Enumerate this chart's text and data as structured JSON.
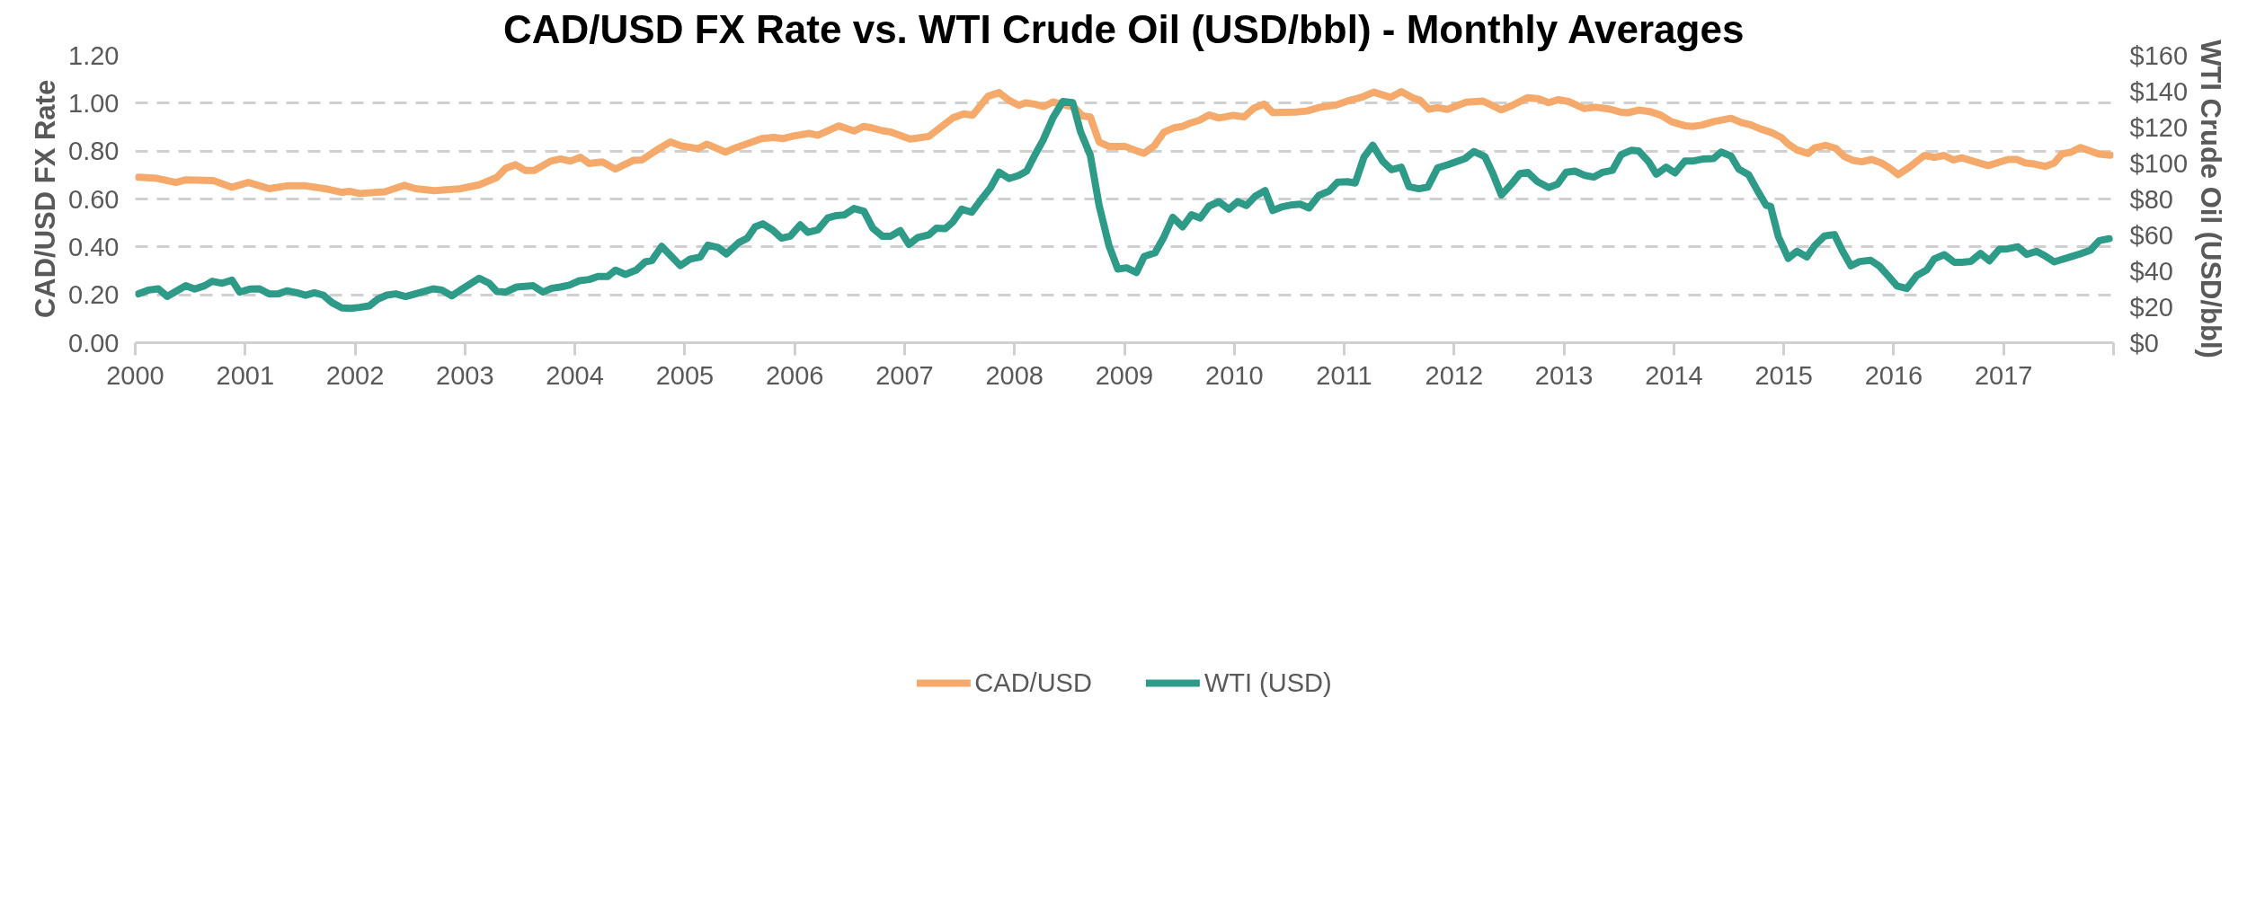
{
  "chart_data": {
    "type": "line",
    "title": "CAD/USD FX Rate vs. WTI Crude Oil (USD/bbl) - Monthly Averages",
    "ylabel": "CAD/USD FX Rate",
    "y2label": "WTI Crude Oil (USD/bbl)",
    "xlim": [
      2000,
      2018
    ],
    "xticks": [
      2000,
      2001,
      2002,
      2003,
      2004,
      2005,
      2006,
      2007,
      2008,
      2009,
      2010,
      2011,
      2012,
      2013,
      2014,
      2015,
      2016,
      2017,
      {
        "value": 2018,
        "label": null
      }
    ],
    "ylim": [
      0,
      1.2
    ],
    "yticks": [
      {
        "value": 0,
        "label": "0.00"
      },
      {
        "value": 0.2,
        "label": "0.20"
      },
      {
        "value": 0.4,
        "label": "0.40"
      },
      {
        "value": 0.6,
        "label": "0.60"
      },
      {
        "value": 0.8,
        "label": "0.80"
      },
      {
        "value": 1.0,
        "label": "1.00"
      },
      {
        "value": 1.2,
        "label": "1.20"
      }
    ],
    "y2lim": [
      0,
      160
    ],
    "y2ticks": [
      {
        "value": 0,
        "label": "$0"
      },
      {
        "value": 20,
        "label": "$20"
      },
      {
        "value": 40,
        "label": "$40"
      },
      {
        "value": 60,
        "label": "$60"
      },
      {
        "value": 80,
        "label": "$80"
      },
      {
        "value": 100,
        "label": "$100"
      },
      {
        "value": 120,
        "label": "$120"
      },
      {
        "value": 140,
        "label": "$140"
      },
      {
        "value": 160,
        "label": "$160"
      }
    ],
    "grid": "y",
    "legend": "bottom",
    "series": [
      {
        "name": "CAD/USD",
        "color": "#f5aa6c",
        "x": [
          2000.03,
          2000.2,
          2000.37,
          2000.46,
          2000.71,
          2000.88,
          2001.03,
          2001.22,
          2001.38,
          2001.55,
          2001.75,
          2001.88,
          2001.95,
          2002.04,
          2002.27,
          2002.45,
          2002.55,
          2002.72,
          2002.96,
          2003.13,
          2003.29,
          2003.37,
          2003.46,
          2003.55,
          2003.63,
          2003.78,
          2003.87,
          2003.96,
          2004.05,
          2004.13,
          2004.25,
          2004.37,
          2004.53,
          2004.61,
          2004.75,
          2004.87,
          2004.97,
          2005.12,
          2005.2,
          2005.37,
          2005.47,
          2005.7,
          2005.81,
          2005.89,
          2005.99,
          2006.13,
          2006.21,
          2006.4,
          2006.54,
          2006.63,
          2006.7,
          2006.8,
          2006.87,
          2007.05,
          2007.22,
          2007.44,
          2007.54,
          2007.62,
          2007.76,
          2007.86,
          2007.95,
          2008.04,
          2008.1,
          2008.18,
          2008.27,
          2008.35,
          2008.47,
          2008.54,
          2008.62,
          2008.69,
          2008.77,
          2008.86,
          2009.01,
          2009.11,
          2009.18,
          2009.27,
          2009.36,
          2009.45,
          2009.53,
          2009.6,
          2009.68,
          2009.77,
          2009.86,
          2009.99,
          2010.09,
          2010.18,
          2010.27,
          2010.35,
          2010.56,
          2010.66,
          2010.78,
          2010.93,
          2011.03,
          2011.15,
          2011.27,
          2011.42,
          2011.52,
          2011.62,
          2011.69,
          2011.77,
          2011.85,
          2011.94,
          2012.11,
          2012.26,
          2012.33,
          2012.43,
          2012.53,
          2012.67,
          2012.77,
          2012.86,
          2012.95,
          2013.04,
          2013.18,
          2013.29,
          2013.41,
          2013.51,
          2013.58,
          2013.68,
          2013.78,
          2013.88,
          2013.98,
          2014.1,
          2014.17,
          2014.25,
          2014.37,
          2014.52,
          2014.62,
          2014.69,
          2014.79,
          2014.89,
          2014.98,
          2015.04,
          2015.12,
          2015.22,
          2015.28,
          2015.38,
          2015.47,
          2015.55,
          2015.63,
          2015.71,
          2015.8,
          2015.89,
          2015.97,
          2016.04,
          2016.14,
          2016.28,
          2016.37,
          2016.46,
          2016.54,
          2016.62,
          2016.74,
          2016.86,
          2017.04,
          2017.12,
          2017.2,
          2017.28,
          2017.38,
          2017.46,
          2017.53,
          2017.61,
          2017.7,
          2017.81,
          2017.87,
          2017.97
        ],
        "values": [
          0.691,
          0.686,
          0.669,
          0.68,
          0.677,
          0.649,
          0.669,
          0.643,
          0.655,
          0.655,
          0.641,
          0.628,
          0.632,
          0.623,
          0.63,
          0.657,
          0.643,
          0.635,
          0.643,
          0.659,
          0.69,
          0.728,
          0.743,
          0.719,
          0.719,
          0.758,
          0.767,
          0.758,
          0.774,
          0.748,
          0.755,
          0.725,
          0.761,
          0.763,
          0.806,
          0.838,
          0.821,
          0.81,
          0.829,
          0.796,
          0.815,
          0.852,
          0.857,
          0.852,
          0.863,
          0.874,
          0.866,
          0.905,
          0.884,
          0.903,
          0.897,
          0.885,
          0.88,
          0.85,
          0.861,
          0.939,
          0.955,
          0.95,
          1.029,
          1.044,
          1.012,
          0.991,
          1.001,
          0.996,
          0.986,
          1.005,
          0.991,
          0.984,
          0.947,
          0.942,
          0.838,
          0.819,
          0.819,
          0.801,
          0.791,
          0.821,
          0.879,
          0.897,
          0.903,
          0.917,
          0.928,
          0.951,
          0.938,
          0.949,
          0.943,
          0.98,
          0.996,
          0.961,
          0.963,
          0.967,
          0.983,
          0.993,
          1.009,
          1.023,
          1.046,
          1.024,
          1.048,
          1.023,
          1.012,
          0.975,
          0.981,
          0.974,
          1.004,
          1.009,
          0.994,
          0.972,
          0.991,
          1.023,
          1.018,
          1.002,
          1.015,
          1.007,
          0.978,
          0.983,
          0.976,
          0.963,
          0.96,
          0.971,
          0.965,
          0.95,
          0.922,
          0.906,
          0.903,
          0.908,
          0.924,
          0.937,
          0.918,
          0.911,
          0.892,
          0.877,
          0.856,
          0.829,
          0.805,
          0.79,
          0.813,
          0.824,
          0.812,
          0.778,
          0.761,
          0.755,
          0.765,
          0.75,
          0.727,
          0.702,
          0.732,
          0.782,
          0.774,
          0.782,
          0.763,
          0.772,
          0.755,
          0.739,
          0.765,
          0.765,
          0.75,
          0.746,
          0.736,
          0.75,
          0.788,
          0.795,
          0.815,
          0.797,
          0.787,
          0.783
        ]
      },
      {
        "name": "WTI (USD)",
        "color": "#2e9a88",
        "axis": "y2",
        "x": [
          2000.03,
          2000.12,
          2000.21,
          2000.29,
          2000.46,
          2000.54,
          2000.63,
          2000.7,
          2000.79,
          2000.88,
          2000.95,
          2001.05,
          2001.13,
          2001.22,
          2001.3,
          2001.38,
          2001.47,
          2001.55,
          2001.63,
          2001.71,
          2001.79,
          2001.88,
          2001.96,
          2002.04,
          2002.13,
          2002.21,
          2002.29,
          2002.37,
          2002.46,
          2002.63,
          2002.71,
          2002.79,
          2002.88,
          2002.96,
          2003.13,
          2003.22,
          2003.29,
          2003.37,
          2003.47,
          2003.62,
          2003.71,
          2003.79,
          2003.87,
          2003.95,
          2004.04,
          2004.13,
          2004.21,
          2004.3,
          2004.37,
          2004.46,
          2004.56,
          2004.64,
          2004.7,
          2004.79,
          2004.96,
          2005.05,
          2005.14,
          2005.21,
          2005.3,
          2005.38,
          2005.49,
          2005.57,
          2005.64,
          2005.71,
          2005.8,
          2005.88,
          2005.96,
          2006.05,
          2006.12,
          2006.21,
          2006.3,
          2006.38,
          2006.45,
          2006.54,
          2006.63,
          2006.71,
          2006.8,
          2006.87,
          2006.96,
          2007.04,
          2007.12,
          2007.22,
          2007.29,
          2007.37,
          2007.44,
          2007.52,
          2007.61,
          2007.7,
          2007.78,
          2007.86,
          2007.95,
          2008.04,
          2008.11,
          2008.19,
          2008.26,
          2008.35,
          2008.44,
          2008.53,
          2008.6,
          2008.69,
          2008.77,
          2008.86,
          2008.94,
          2009.02,
          2009.11,
          2009.18,
          2009.28,
          2009.36,
          2009.44,
          2009.53,
          2009.61,
          2009.69,
          2009.77,
          2009.86,
          2009.95,
          2010.03,
          2010.11,
          2010.19,
          2010.28,
          2010.35,
          2010.44,
          2010.53,
          2010.6,
          2010.68,
          2010.77,
          2010.86,
          2010.94,
          2011.03,
          2011.1,
          2011.18,
          2011.26,
          2011.35,
          2011.43,
          2011.52,
          2011.59,
          2011.68,
          2011.76,
          2011.85,
          2011.94,
          2012.1,
          2012.18,
          2012.28,
          2012.35,
          2012.43,
          2012.52,
          2012.6,
          2012.67,
          2012.76,
          2012.86,
          2012.94,
          2013.02,
          2013.1,
          2013.19,
          2013.27,
          2013.35,
          2013.44,
          2013.52,
          2013.61,
          2013.68,
          2013.77,
          2013.84,
          2013.93,
          2014.01,
          2014.1,
          2014.17,
          2014.26,
          2014.36,
          2014.43,
          2014.52,
          2014.59,
          2014.68,
          2014.76,
          2014.84,
          2014.88,
          2014.95,
          2015.04,
          2015.12,
          2015.21,
          2015.28,
          2015.37,
          2015.46,
          2015.53,
          2015.61,
          2015.69,
          2015.79,
          2015.87,
          2015.95,
          2016.03,
          2016.12,
          2016.21,
          2016.3,
          2016.37,
          2016.46,
          2016.55,
          2016.62,
          2016.7,
          2016.79,
          2016.87,
          2016.96,
          2017.04,
          2017.13,
          2017.21,
          2017.3,
          2017.38,
          2017.46,
          2017.61,
          2017.7,
          2017.79,
          2017.87,
          2017.96
        ],
        "values": [
          27.2,
          29.3,
          30.0,
          25.8,
          31.7,
          29.9,
          31.7,
          34.2,
          33.1,
          34.8,
          28.2,
          29.9,
          30.0,
          27.1,
          27.2,
          28.9,
          27.8,
          26.4,
          27.8,
          26.5,
          22.3,
          19.4,
          19.1,
          19.7,
          20.5,
          24.4,
          26.5,
          27.2,
          25.7,
          28.6,
          30.0,
          29.3,
          26.1,
          29.3,
          35.9,
          33.1,
          28.5,
          28.2,
          31.0,
          31.7,
          28.2,
          30.3,
          31.0,
          32.1,
          34.5,
          35.2,
          36.9,
          36.9,
          40.4,
          38.0,
          40.5,
          45.0,
          45.7,
          53.6,
          42.9,
          46.6,
          47.7,
          54.3,
          53.1,
          49.4,
          55.7,
          58.2,
          64.5,
          66.2,
          62.7,
          58.2,
          59.3,
          65.6,
          61.4,
          62.8,
          69.4,
          70.8,
          71.1,
          74.7,
          73.2,
          63.8,
          59.2,
          59.2,
          62.4,
          54.7,
          58.6,
          60.0,
          63.8,
          63.5,
          67.3,
          74.3,
          72.6,
          79.9,
          86.1,
          94.9,
          91.4,
          93.1,
          95.5,
          105.0,
          112.7,
          125.2,
          134.3,
          133.6,
          117.6,
          104.3,
          76.4,
          54.0,
          41.0,
          41.7,
          39.1,
          48.0,
          50.1,
          58.9,
          69.8,
          64.5,
          71.2,
          69.4,
          76.0,
          78.5,
          74.3,
          78.5,
          76.4,
          81.5,
          84.7,
          73.6,
          75.7,
          76.8,
          77.1,
          75.0,
          82.0,
          84.3,
          89.4,
          89.6,
          88.9,
          103.3,
          109.9,
          101.1,
          96.3,
          97.7,
          86.8,
          85.7,
          86.6,
          97.3,
          99.0,
          102.5,
          106.4,
          103.6,
          94.5,
          82.2,
          88.2,
          94.2,
          94.8,
          89.6,
          86.4,
          88.2,
          94.9,
          95.5,
          93.1,
          92.2,
          94.8,
          95.9,
          104.7,
          107.1,
          106.7,
          100.8,
          93.8,
          97.7,
          94.5,
          101.1,
          101.1,
          102.2,
          102.5,
          106.1,
          103.9,
          96.6,
          93.5,
          84.7,
          76.4,
          75.9,
          59.1,
          47.0,
          50.9,
          47.8,
          54.0,
          59.4,
          60.2,
          51.5,
          42.8,
          45.2,
          45.9,
          42.6,
          37.2,
          31.6,
          30.2,
          37.4,
          40.5,
          46.7,
          49.0,
          44.8,
          44.8,
          45.2,
          49.7,
          45.6,
          52.0,
          52.3,
          53.4,
          49.2,
          50.9,
          48.2,
          45.0,
          47.8,
          49.5,
          51.5,
          56.8,
          57.9
        ]
      }
    ]
  }
}
